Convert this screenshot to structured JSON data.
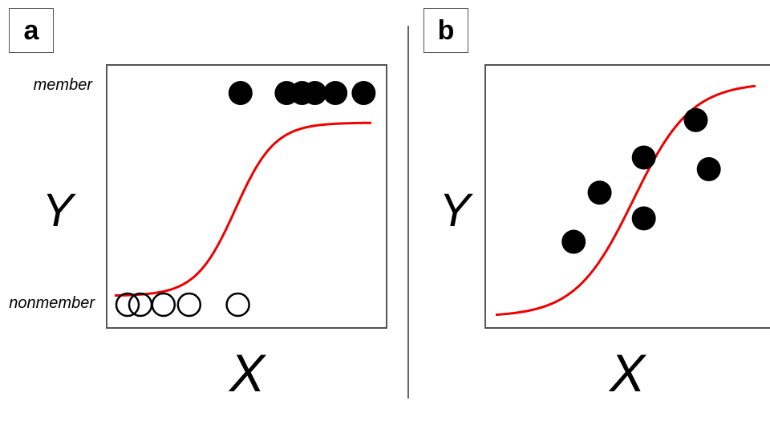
{
  "panels": [
    {
      "label": "a",
      "chart_data": {
        "type": "scatter",
        "xlabel": "X",
        "ylabel": "Y",
        "y_categories": [
          "nonmember",
          "member"
        ],
        "members_x": [
          0.49,
          0.67,
          0.73,
          0.78,
          0.86,
          0.97
        ],
        "nonmembers_x": [
          0.05,
          0.1,
          0.19,
          0.29,
          0.48
        ],
        "curve": {
          "type": "logistic",
          "midpoint": 0.47,
          "steepness": 13,
          "low": 0.07,
          "high": 0.79
        }
      }
    },
    {
      "label": "b",
      "chart_data": {
        "type": "scatter",
        "xlabel": "X",
        "ylabel": "Y",
        "points": [
          {
            "x": 0.3,
            "y": 0.32
          },
          {
            "x": 0.4,
            "y": 0.53
          },
          {
            "x": 0.57,
            "y": 0.42
          },
          {
            "x": 0.57,
            "y": 0.68
          },
          {
            "x": 0.77,
            "y": 0.84
          },
          {
            "x": 0.82,
            "y": 0.63
          }
        ],
        "curve": {
          "type": "logistic",
          "midpoint": 0.53,
          "steepness": 9,
          "low": 0.0,
          "high": 1.0
        }
      }
    }
  ],
  "colors": {
    "curve": "#ee0000",
    "points": "#000000",
    "frame": "#555555"
  }
}
